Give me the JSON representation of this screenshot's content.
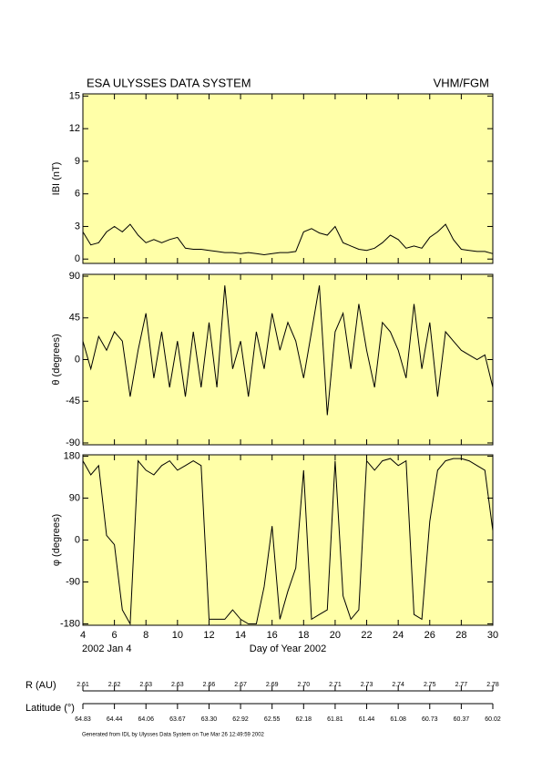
{
  "title": "ESA ULYSSES DATA SYSTEM",
  "instrument": "VHM/FGM",
  "x_axis": {
    "label": "Day of Year 2002",
    "start_date": "2002 Jan  4",
    "lim": [
      4,
      30
    ],
    "ticks": [
      4,
      6,
      8,
      10,
      12,
      14,
      16,
      18,
      20,
      22,
      24,
      26,
      28,
      30
    ]
  },
  "chart_data": [
    {
      "type": "line",
      "ylabel": "IBI (nT)",
      "color": "#000000",
      "ylim": [
        -0.4,
        15.2
      ],
      "yticks": [
        0,
        3,
        6,
        9,
        12,
        15
      ],
      "x": [
        4,
        4.5,
        5,
        5.5,
        6,
        6.5,
        7,
        7.5,
        8,
        8.5,
        9,
        9.5,
        10,
        10.5,
        11,
        11.5,
        12,
        12.5,
        13,
        13.5,
        14,
        14.5,
        15,
        15.5,
        16,
        16.5,
        17,
        17.5,
        18,
        18.5,
        19,
        19.5,
        20,
        20.5,
        21,
        21.5,
        22,
        22.5,
        23,
        23.5,
        24,
        24.5,
        25,
        25.5,
        26,
        26.5,
        27,
        27.5,
        28,
        28.5,
        29,
        29.5,
        30
      ],
      "values": [
        2.5,
        1.3,
        1.5,
        2.5,
        3.0,
        2.5,
        3.2,
        2.2,
        1.5,
        1.8,
        1.5,
        1.8,
        2.0,
        1.0,
        0.9,
        0.9,
        0.8,
        0.7,
        0.6,
        0.6,
        0.5,
        0.6,
        0.5,
        0.4,
        0.5,
        0.6,
        0.6,
        0.7,
        2.5,
        2.8,
        2.4,
        2.2,
        3.0,
        1.5,
        1.2,
        0.9,
        0.8,
        1.0,
        1.5,
        2.2,
        1.8,
        1.0,
        1.2,
        1.0,
        2.0,
        2.5,
        3.2,
        1.8,
        0.9,
        0.8,
        0.7,
        0.7,
        0.5
      ]
    },
    {
      "type": "line",
      "ylabel": "θ (degrees)",
      "color": "#000000",
      "ylim": [
        -92,
        92
      ],
      "yticks": [
        -90,
        -45,
        0,
        45,
        90
      ],
      "x": [
        4,
        4.5,
        5,
        5.5,
        6,
        6.5,
        7,
        7.5,
        8,
        8.5,
        9,
        9.5,
        10,
        10.5,
        11,
        11.5,
        12,
        12.5,
        13,
        13.5,
        14,
        14.5,
        15,
        15.5,
        16,
        16.5,
        17,
        17.5,
        18,
        18.5,
        19,
        19.5,
        20,
        20.5,
        21,
        21.5,
        22,
        22.5,
        23,
        23.5,
        24,
        24.5,
        25,
        25.5,
        26,
        26.5,
        27,
        27.5,
        28,
        28.5,
        29,
        29.5,
        30
      ],
      "values": [
        20,
        -10,
        25,
        10,
        30,
        20,
        -40,
        10,
        50,
        -20,
        30,
        -30,
        20,
        -40,
        30,
        -30,
        40,
        -30,
        80,
        -10,
        20,
        -40,
        30,
        -10,
        50,
        10,
        40,
        20,
        -20,
        30,
        80,
        -60,
        30,
        50,
        -10,
        60,
        10,
        -30,
        40,
        30,
        10,
        -20,
        60,
        -10,
        40,
        -40,
        30,
        20,
        10,
        5,
        0,
        5,
        -30
      ]
    },
    {
      "type": "line",
      "ylabel": "φ (degrees)",
      "color": "#000000",
      "ylim": [
        -183,
        183
      ],
      "yticks": [
        -180,
        -90,
        0,
        90,
        180
      ],
      "x": [
        4,
        4.5,
        5,
        5.5,
        6,
        6.5,
        7,
        7.5,
        8,
        8.5,
        9,
        9.5,
        10,
        10.5,
        11,
        11.5,
        12,
        12.5,
        13,
        13.5,
        14,
        14.5,
        15,
        15.5,
        16,
        16.5,
        17,
        17.5,
        18,
        18.5,
        19,
        19.5,
        20,
        20.5,
        21,
        21.5,
        22,
        22.5,
        23,
        23.5,
        24,
        24.5,
        25,
        25.5,
        26,
        26.5,
        27,
        27.5,
        28,
        28.5,
        29,
        29.5,
        30
      ],
      "values": [
        170,
        140,
        160,
        10,
        -10,
        -150,
        -180,
        170,
        150,
        140,
        160,
        170,
        150,
        160,
        170,
        160,
        -170,
        -170,
        -170,
        -150,
        -170,
        -180,
        -180,
        -100,
        30,
        -170,
        -110,
        -60,
        150,
        -170,
        -160,
        -150,
        170,
        -120,
        -170,
        -150,
        170,
        150,
        170,
        175,
        160,
        170,
        -160,
        -170,
        40,
        150,
        170,
        175,
        175,
        170,
        160,
        150,
        20
      ]
    }
  ],
  "ephemeris": [
    {
      "label": "R (AU)",
      "values": [
        2.61,
        2.62,
        2.63,
        2.63,
        2.66,
        2.67,
        2.69,
        {
          "value": 2.7,
          "label": "2.70"
        },
        2.71,
        2.73,
        2.74,
        2.75,
        2.77,
        2.78
      ]
    },
    {
      "label": "Latitude (°)",
      "values": [
        64.83,
        64.44,
        64.06,
        63.67,
        {
          "value": 63.3,
          "label": "63.30"
        },
        62.92,
        62.55,
        62.18,
        61.81,
        61.44,
        61.08,
        60.73,
        60.37,
        60.02
      ]
    }
  ],
  "footer": "Generated from IDL by Ulysses Data System on Tue Mar 26 12:49:59 2002"
}
